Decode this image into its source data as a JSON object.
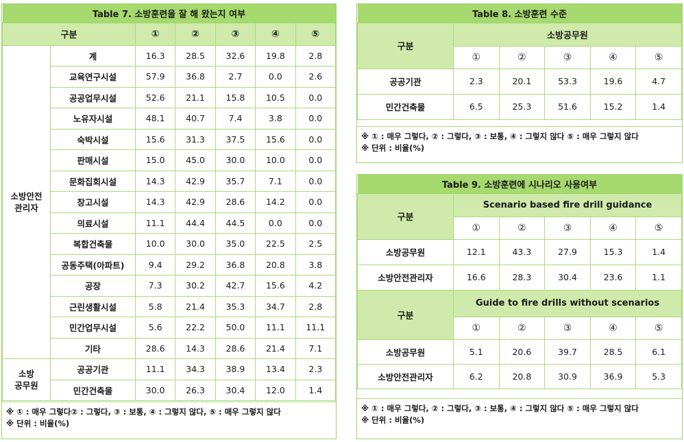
{
  "table7": {
    "title": "Table 7. 소방훈련을 잘 해 왔는지 여부",
    "header_label": "구분",
    "columns": [
      "①",
      "②",
      "③",
      "④",
      "⑤"
    ],
    "group1": "소방안전\n관리자",
    "group2": "소방\n공무원",
    "rows": [
      {
        "label": "계",
        "values": [
          "16.3",
          "28.5",
          "32.6",
          "19.8",
          "2.8"
        ]
      },
      {
        "label": "교육연구시설",
        "values": [
          "57.9",
          "36.8",
          "2.7",
          "0.0",
          "2.6"
        ]
      },
      {
        "label": "공공업무시설",
        "values": [
          "52.6",
          "21.1",
          "15.8",
          "10.5",
          "0.0"
        ]
      },
      {
        "label": "노유자시설",
        "values": [
          "48.1",
          "40.7",
          "7.4",
          "3.8",
          "0.0"
        ]
      },
      {
        "label": "숙박시설",
        "values": [
          "15.6",
          "31.3",
          "37.5",
          "15.6",
          "0.0"
        ]
      },
      {
        "label": "판매시설",
        "values": [
          "15.0",
          "45.0",
          "30.0",
          "10.0",
          "0.0"
        ]
      },
      {
        "label": "문화집회시설",
        "values": [
          "14.3",
          "42.9",
          "35.7",
          "7.1",
          "0.0"
        ]
      },
      {
        "label": "창고시설",
        "values": [
          "14.3",
          "42.9",
          "28.6",
          "14.2",
          "0.0"
        ]
      },
      {
        "label": "의료시설",
        "values": [
          "11.1",
          "44.4",
          "44.5",
          "0.0",
          "0.0"
        ]
      },
      {
        "label": "복합건축물",
        "values": [
          "10.0",
          "30.0",
          "35.0",
          "22.5",
          "2.5"
        ]
      },
      {
        "label": "공동주택(아파트)",
        "values": [
          "9.4",
          "29.2",
          "36.8",
          "20.8",
          "3.8"
        ]
      },
      {
        "label": "공장",
        "values": [
          "7.3",
          "30.2",
          "42.7",
          "15.6",
          "4.2"
        ]
      },
      {
        "label": "근린생활시설",
        "values": [
          "5.8",
          "21.4",
          "35.3",
          "34.7",
          "2.8"
        ]
      },
      {
        "label": "민간업무시설",
        "values": [
          "5.6",
          "22.2",
          "50.0",
          "11.1",
          "11.1"
        ]
      },
      {
        "label": "기타",
        "values": [
          "28.6",
          "14.3",
          "28.6",
          "21.4",
          "7.1"
        ]
      },
      {
        "label": "공공기관",
        "values": [
          "11.1",
          "34.3",
          "38.9",
          "13.4",
          "2.3"
        ]
      },
      {
        "label": "민간건축물",
        "values": [
          "30.0",
          "26.3",
          "30.4",
          "12.0",
          "1.4"
        ]
      }
    ],
    "note1": "※ ① : 매우 그렇다② : 그렇다, ③ : 보통, ④ : 그렇지 않다, ⑤ : 매우 그렇지 않다",
    "note2": "※ 단위 : 비율(%)"
  },
  "table8": {
    "title": "Table 8. 소방훈련 수준",
    "header_label": "구분",
    "group_header": "소방공무원",
    "columns": [
      "①",
      "②",
      "③",
      "④",
      "⑤"
    ],
    "rows": [
      {
        "label": "공공기관",
        "values": [
          "2.3",
          "20.1",
          "53.3",
          "19.6",
          "4.7"
        ]
      },
      {
        "label": "민간건축물",
        "values": [
          "6.5",
          "25.3",
          "51.6",
          "15.2",
          "1.4"
        ]
      }
    ],
    "note1": "※ ① : 매우 그렇다, ② : 그렇다, ③ : 보통,    ④ : 그렇지 않다 ⑤ : 매우 그렇지 않다",
    "note2": "※ 단위 : 비율(%)"
  },
  "table9": {
    "title": "Table 9. 소방훈련에 시나리오 사용여부",
    "header_label": "구분",
    "columns": [
      "①",
      "②",
      "③",
      "④",
      "⑤"
    ],
    "section1": {
      "header": "Scenario based fire drill guidance",
      "rows": [
        {
          "label": "소방공무원",
          "values": [
            "12.1",
            "43.3",
            "27.9",
            "15.3",
            "1.4"
          ]
        },
        {
          "label": "소방안전관리자",
          "values": [
            "16.6",
            "28.3",
            "30.4",
            "23.6",
            "1.1"
          ]
        }
      ]
    },
    "section2": {
      "header": "Guide to fire drills without scenarios",
      "rows": [
        {
          "label": "소방공무원",
          "values": [
            "5.1",
            "20.6",
            "39.7",
            "28.5",
            "6.1"
          ]
        },
        {
          "label": "소방안전관리자",
          "values": [
            "6.2",
            "20.8",
            "30.9",
            "36.9",
            "5.3"
          ]
        }
      ]
    },
    "note1": "※ ① : 매우 그렇다, ② : 그렇다, ③ : 보통,    ④ : 그렇지 않다 ⑤ : 매우 그렇지 않다",
    "note2": "※ 단위 : 비율(%)"
  }
}
